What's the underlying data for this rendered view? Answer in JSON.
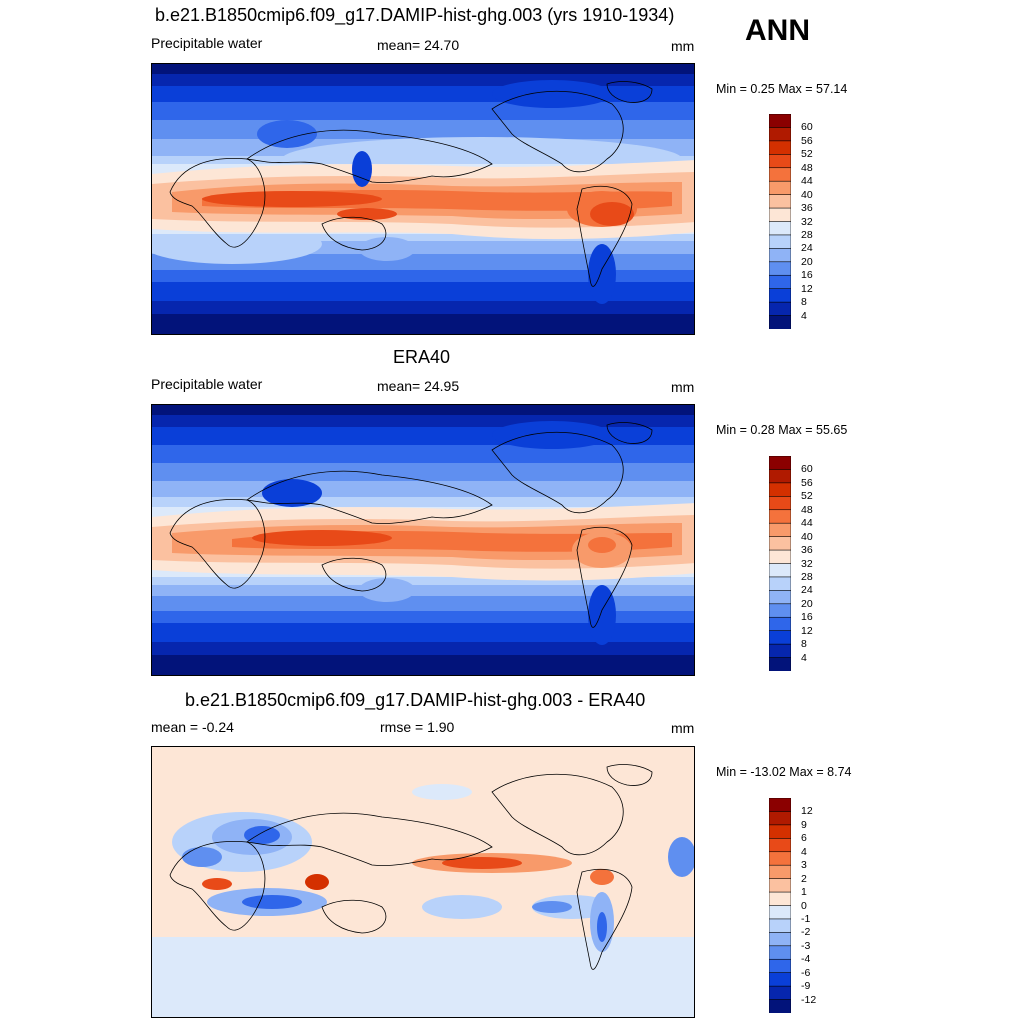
{
  "season": "ANN",
  "panels": [
    {
      "title": "b.e21.B1850cmip6.f09_g17.DAMIP-hist-ghg.003 (yrs 1910-1934)",
      "left_label": "Precipitable water",
      "center_label": "mean=  24.70",
      "right_label": "mm",
      "minmax": "Min =   0.25 Max =  57.14",
      "colorbar": {
        "labels": [
          "60",
          "56",
          "52",
          "48",
          "44",
          "40",
          "36",
          "32",
          "28",
          "24",
          "20",
          "16",
          "12",
          "8",
          "4"
        ],
        "colors": [
          "#8b0000",
          "#b01a00",
          "#d43000",
          "#e84a18",
          "#f4723c",
          "#f89a6a",
          "#fbc1a0",
          "#fde6d6",
          "#dce9fa",
          "#b8d2fa",
          "#8fb3f6",
          "#5f8ff0",
          "#2f66ea",
          "#0a3fd8",
          "#0626ae",
          "#02137a"
        ]
      },
      "map_type": "absolute"
    },
    {
      "title": "ERA40",
      "left_label": "Precipitable water",
      "center_label": "mean=  24.95",
      "right_label": "mm",
      "minmax": "Min =   0.28 Max =  55.65",
      "colorbar": {
        "labels": [
          "60",
          "56",
          "52",
          "48",
          "44",
          "40",
          "36",
          "32",
          "28",
          "24",
          "20",
          "16",
          "12",
          "8",
          "4"
        ],
        "colors": [
          "#8b0000",
          "#b01a00",
          "#d43000",
          "#e84a18",
          "#f4723c",
          "#f89a6a",
          "#fbc1a0",
          "#fde6d6",
          "#dce9fa",
          "#b8d2fa",
          "#8fb3f6",
          "#5f8ff0",
          "#2f66ea",
          "#0a3fd8",
          "#0626ae",
          "#02137a"
        ]
      },
      "map_type": "absolute"
    },
    {
      "title": "b.e21.B1850cmip6.f09_g17.DAMIP-hist-ghg.003 - ERA40",
      "left_label": "mean =  -0.24",
      "center_label": "rmse =   1.90",
      "right_label": "mm",
      "minmax": "Min = -13.02 Max =   8.74",
      "colorbar": {
        "labels": [
          "12",
          "9",
          "6",
          "4",
          "3",
          "2",
          "1",
          "0",
          "-1",
          "-2",
          "-3",
          "-4",
          "-6",
          "-9",
          "-12"
        ],
        "colors": [
          "#8b0000",
          "#b01a00",
          "#d43000",
          "#e84a18",
          "#f4723c",
          "#f89a6a",
          "#fbc1a0",
          "#fde6d6",
          "#dce9fa",
          "#b8d2fa",
          "#8fb3f6",
          "#5f8ff0",
          "#2f66ea",
          "#0a3fd8",
          "#0626ae",
          "#02137a"
        ]
      },
      "map_type": "difference"
    }
  ]
}
